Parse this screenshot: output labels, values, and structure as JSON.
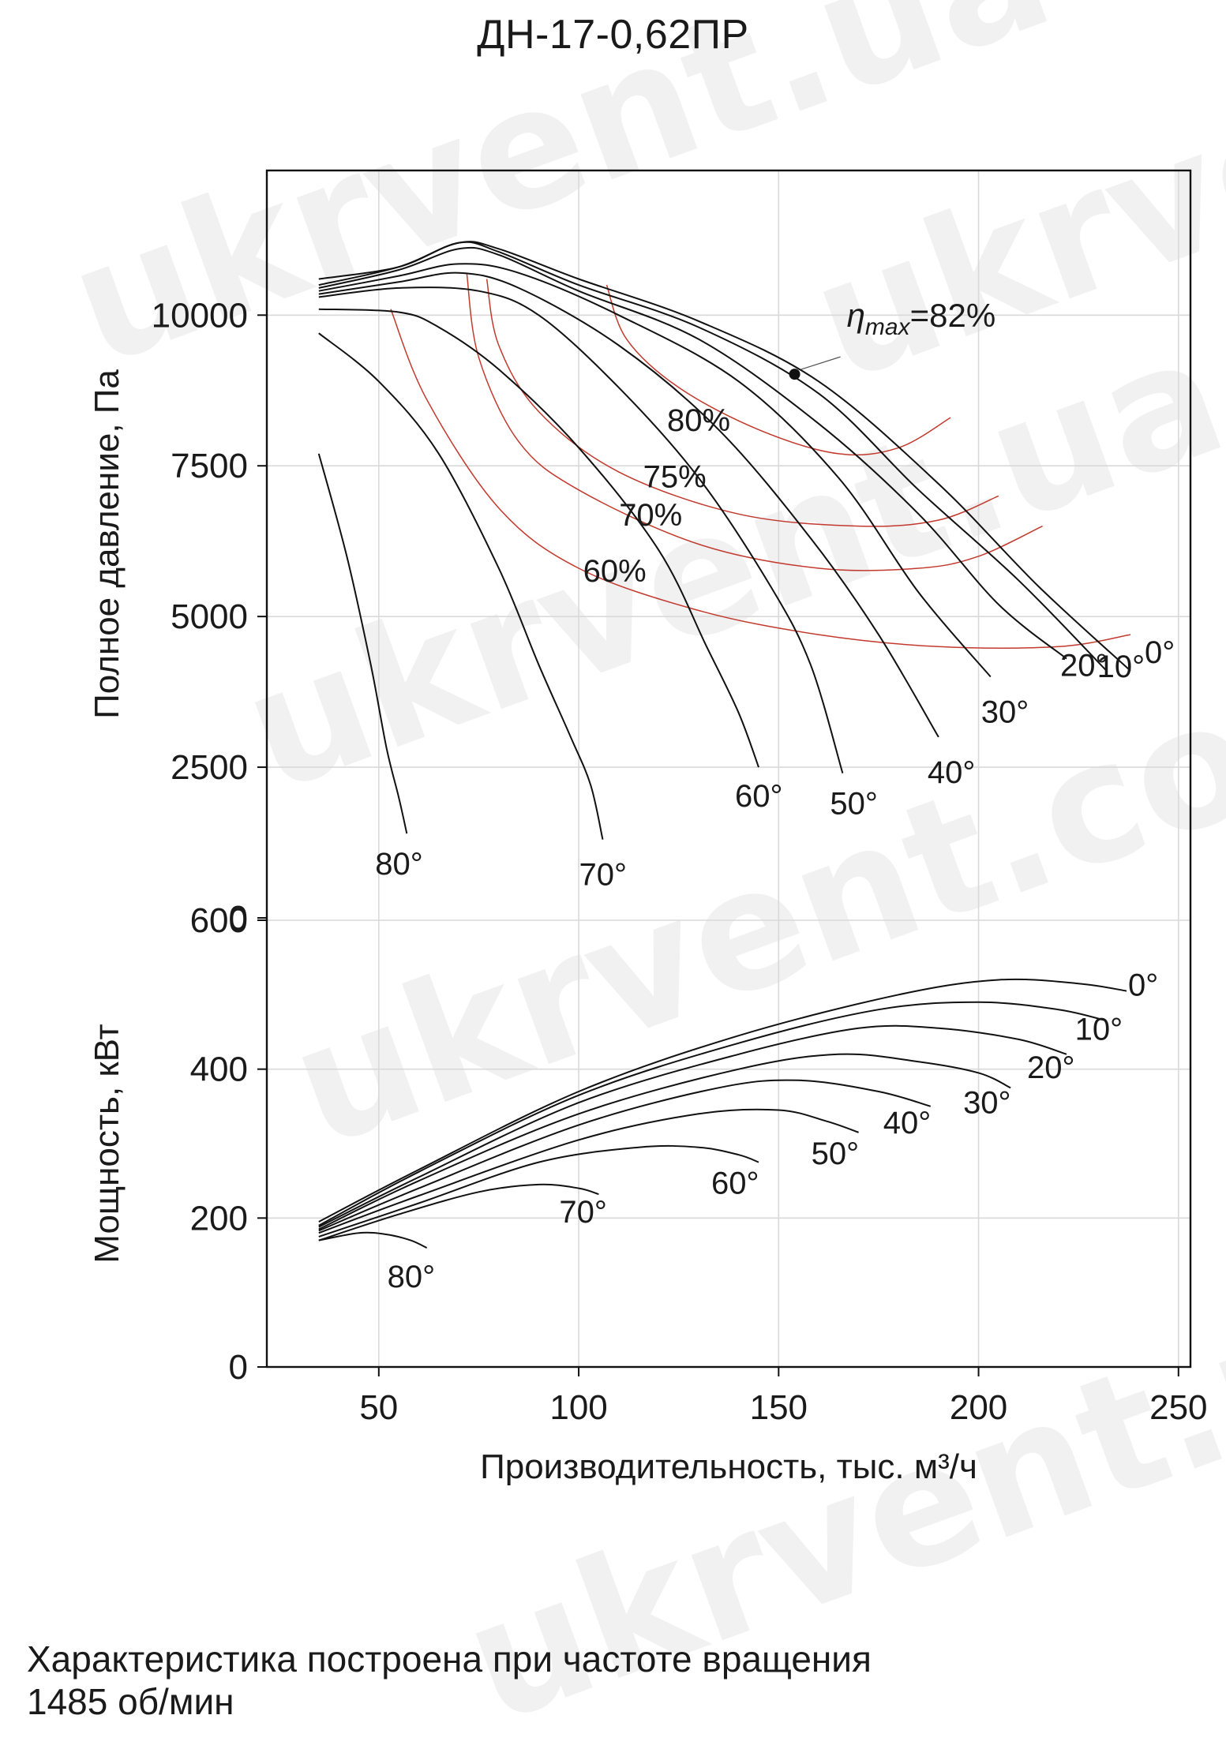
{
  "page": {
    "title": "ДН-17-0,62ПР",
    "footnote_line1": "Характеристика построена при частоте вращения",
    "footnote_line2": "1485 об/мин",
    "watermark_text": "ukrvent.com",
    "watermark_text_alt": "ukrvent.ua"
  },
  "chart_data": {
    "type": "line",
    "title": "ДН-17-0,62ПР",
    "xlabel": "Производительность, тыс. м³/ч",
    "xlim": [
      22,
      253
    ],
    "xticks": [
      50,
      100,
      150,
      200,
      250
    ],
    "grid": true,
    "pressure_panel": {
      "ylabel": "Полное давление, Па",
      "ylim": [
        0,
        12400
      ],
      "yticks": [
        0,
        2500,
        5000,
        7500,
        10000
      ],
      "series": [
        {
          "name": "0°",
          "x": [
            35,
            55,
            70,
            80,
            100,
            130,
            160,
            190,
            215,
            238
          ],
          "y": [
            10500,
            10800,
            11200,
            11100,
            10600,
            9900,
            8900,
            7200,
            5500,
            4100
          ]
        },
        {
          "name": "10°",
          "x": [
            35,
            55,
            70,
            80,
            100,
            130,
            160,
            185,
            210,
            232
          ],
          "y": [
            10600,
            10800,
            11200,
            11050,
            10500,
            9800,
            8700,
            7100,
            5600,
            4100
          ]
        },
        {
          "name": "20°",
          "x": [
            35,
            55,
            70,
            80,
            100,
            130,
            160,
            185,
            205,
            222
          ],
          "y": [
            10450,
            10750,
            11100,
            11000,
            10400,
            9600,
            8200,
            6700,
            5200,
            4300
          ]
        },
        {
          "name": "30°",
          "x": [
            35,
            55,
            70,
            85,
            110,
            140,
            165,
            185,
            203
          ],
          "y": [
            10400,
            10650,
            10850,
            10700,
            10000,
            8900,
            7300,
            5400,
            4000
          ]
        },
        {
          "name": "40°",
          "x": [
            35,
            55,
            70,
            85,
            110,
            135,
            158,
            175,
            190
          ],
          "y": [
            10350,
            10550,
            10700,
            10450,
            9500,
            8100,
            6300,
            4700,
            3000
          ]
        },
        {
          "name": "50°",
          "x": [
            35,
            55,
            75,
            90,
            110,
            130,
            148,
            158,
            166
          ],
          "y": [
            10300,
            10450,
            10400,
            10000,
            8800,
            7300,
            5500,
            4200,
            2400
          ]
        },
        {
          "name": "60°",
          "x": [
            35,
            55,
            65,
            80,
            100,
            120,
            132,
            140,
            145
          ],
          "y": [
            10100,
            10050,
            9800,
            9100,
            7800,
            6100,
            4500,
            3400,
            2500
          ]
        },
        {
          "name": "70°",
          "x": [
            35,
            50,
            65,
            80,
            90,
            98,
            103,
            106
          ],
          "y": [
            9700,
            8900,
            7700,
            5800,
            4200,
            3000,
            2200,
            1300
          ]
        },
        {
          "name": "80°",
          "x": [
            35,
            42,
            48,
            52,
            55,
            57
          ],
          "y": [
            7700,
            6000,
            4200,
            2800,
            2000,
            1400
          ]
        }
      ],
      "efficiency_curves": [
        {
          "name": "60%",
          "x": [
            53,
            62,
            80,
            100,
            130,
            160,
            190,
            220,
            238
          ],
          "y": [
            10100,
            8600,
            6800,
            5800,
            5100,
            4700,
            4500,
            4500,
            4700
          ]
        },
        {
          "name": "70%",
          "x": [
            72,
            75,
            85,
            100,
            130,
            160,
            185,
            200,
            216
          ],
          "y": [
            10700,
            9300,
            7900,
            7100,
            6200,
            5800,
            5800,
            6000,
            6500
          ]
        },
        {
          "name": "75%",
          "x": [
            77,
            80,
            90,
            110,
            140,
            170,
            190,
            205
          ],
          "y": [
            10600,
            9500,
            8400,
            7400,
            6700,
            6500,
            6600,
            7000
          ]
        },
        {
          "name": "80%",
          "x": [
            107,
            112,
            125,
            145,
            165,
            180,
            193
          ],
          "y": [
            10500,
            9600,
            8800,
            8100,
            7700,
            7800,
            8300
          ]
        }
      ],
      "eta_max": {
        "label": "max",
        "value": "=82%",
        "x": 154,
        "y": 9020
      },
      "curve_labels": [
        "0°",
        "10°",
        "20°",
        "30°",
        "40°",
        "50°",
        "60°",
        "70°",
        "80°"
      ],
      "efficiency_labels": [
        "80%",
        "75%",
        "70%",
        "60%"
      ]
    },
    "power_panel": {
      "ylabel": "Мощность, кВт",
      "ylim": [
        0,
        600
      ],
      "yticks": [
        0,
        200,
        400,
        600
      ],
      "series": [
        {
          "name": "0°",
          "x": [
            35,
            60,
            100,
            140,
            180,
            205,
            225,
            237
          ],
          "y": [
            195,
            265,
            370,
            445,
            500,
            520,
            515,
            505
          ]
        },
        {
          "name": "10°",
          "x": [
            35,
            60,
            100,
            140,
            175,
            200,
            220,
            232
          ],
          "y": [
            190,
            262,
            365,
            435,
            480,
            490,
            480,
            465
          ]
        },
        {
          "name": "20°",
          "x": [
            35,
            60,
            100,
            140,
            170,
            190,
            210,
            222
          ],
          "y": [
            188,
            255,
            355,
            420,
            455,
            455,
            440,
            420
          ]
        },
        {
          "name": "30°",
          "x": [
            35,
            60,
            100,
            140,
            165,
            185,
            200,
            208
          ],
          "y": [
            185,
            250,
            340,
            400,
            420,
            410,
            395,
            375
          ]
        },
        {
          "name": "40°",
          "x": [
            35,
            60,
            100,
            135,
            155,
            175,
            188
          ],
          "y": [
            183,
            240,
            325,
            375,
            385,
            370,
            350
          ]
        },
        {
          "name": "50°",
          "x": [
            35,
            60,
            100,
            130,
            150,
            162,
            170
          ],
          "y": [
            180,
            230,
            305,
            340,
            345,
            330,
            315
          ]
        },
        {
          "name": "60°",
          "x": [
            35,
            60,
            90,
            115,
            130,
            140,
            145
          ],
          "y": [
            175,
            220,
            275,
            295,
            295,
            285,
            275
          ]
        },
        {
          "name": "70°",
          "x": [
            35,
            55,
            75,
            90,
            100,
            105
          ],
          "y": [
            170,
            205,
            235,
            245,
            240,
            232
          ]
        },
        {
          "name": "80°",
          "x": [
            35,
            45,
            52,
            58,
            62
          ],
          "y": [
            170,
            180,
            178,
            170,
            160
          ]
        }
      ],
      "curve_labels": [
        "0°",
        "10°",
        "20°",
        "30°",
        "40°",
        "50°",
        "60°",
        "70°",
        "80°"
      ]
    }
  }
}
